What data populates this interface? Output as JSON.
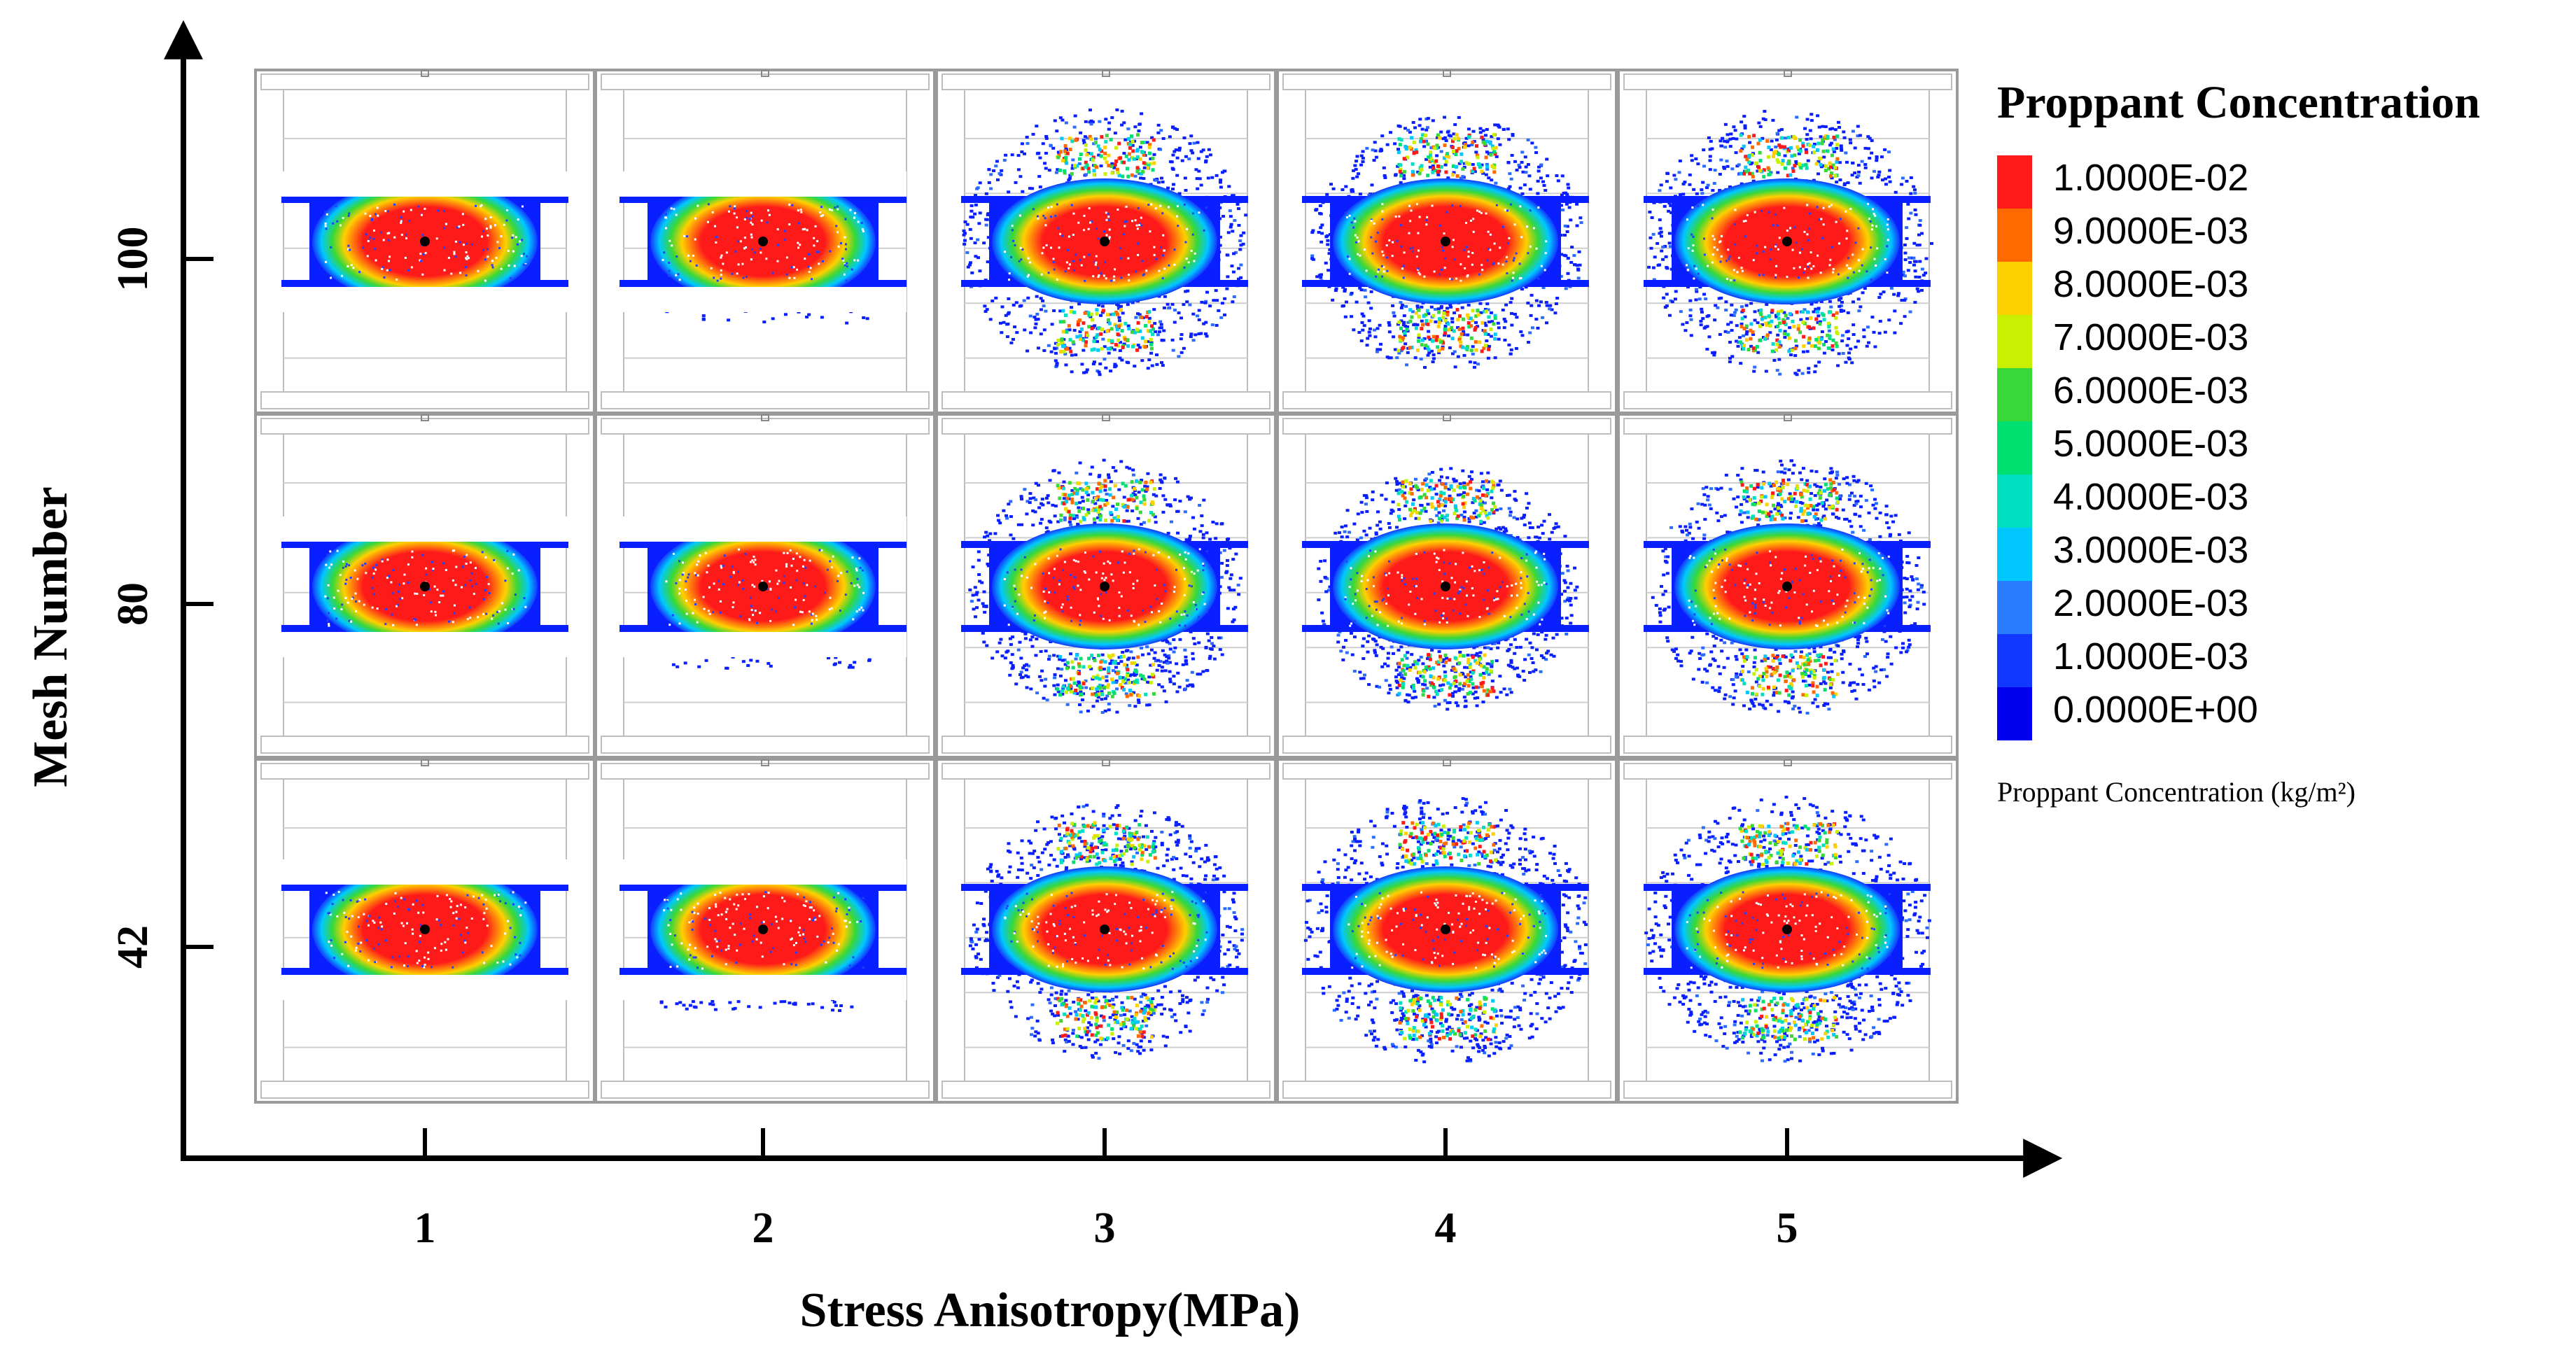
{
  "figure": {
    "x_axis_title": "Stress Anisotropy(MPa)",
    "y_axis_title": "Mesh Number",
    "x_ticks": [
      "1",
      "2",
      "3",
      "4",
      "5"
    ],
    "y_ticks": [
      "100",
      "80",
      "42"
    ]
  },
  "legend": {
    "title": "Proppant Concentration",
    "unit_label": "Proppant Concentration (kg/m²)",
    "entries": [
      {
        "label": "1.0000E-02",
        "color": "#ff1a1a"
      },
      {
        "label": "9.0000E-03",
        "color": "#ff6a00"
      },
      {
        "label": "8.0000E-03",
        "color": "#ffd000"
      },
      {
        "label": "7.0000E-03",
        "color": "#c8f000"
      },
      {
        "label": "6.0000E-03",
        "color": "#38d838"
      },
      {
        "label": "5.0000E-03",
        "color": "#00e070"
      },
      {
        "label": "4.0000E-03",
        "color": "#00e0c0"
      },
      {
        "label": "3.0000E-03",
        "color": "#00c8ff"
      },
      {
        "label": "2.0000E-03",
        "color": "#2a7cff"
      },
      {
        "label": "1.0000E-03",
        "color": "#1238ff"
      },
      {
        "label": "0.0000E+00",
        "color": "#0000ee"
      }
    ]
  },
  "grid": {
    "rows": [
      "100",
      "80",
      "42"
    ],
    "columns": [
      "1",
      "2",
      "3",
      "4",
      "5"
    ],
    "cells": [
      [
        {
          "stress": 1,
          "spread": 0.0
        },
        {
          "stress": 2,
          "spread": 0.15
        },
        {
          "stress": 3,
          "spread": 1.0
        },
        {
          "stress": 4,
          "spread": 0.95
        },
        {
          "stress": 5,
          "spread": 1.0
        }
      ],
      [
        {
          "stress": 1,
          "spread": 0.0
        },
        {
          "stress": 2,
          "spread": 0.15
        },
        {
          "stress": 3,
          "spread": 0.95
        },
        {
          "stress": 4,
          "spread": 0.9
        },
        {
          "stress": 5,
          "spread": 0.95
        }
      ],
      [
        {
          "stress": 1,
          "spread": 0.0
        },
        {
          "stress": 2,
          "spread": 0.15
        },
        {
          "stress": 3,
          "spread": 0.95
        },
        {
          "stress": 4,
          "spread": 1.0
        },
        {
          "stress": 5,
          "spread": 1.0
        }
      ]
    ]
  }
}
